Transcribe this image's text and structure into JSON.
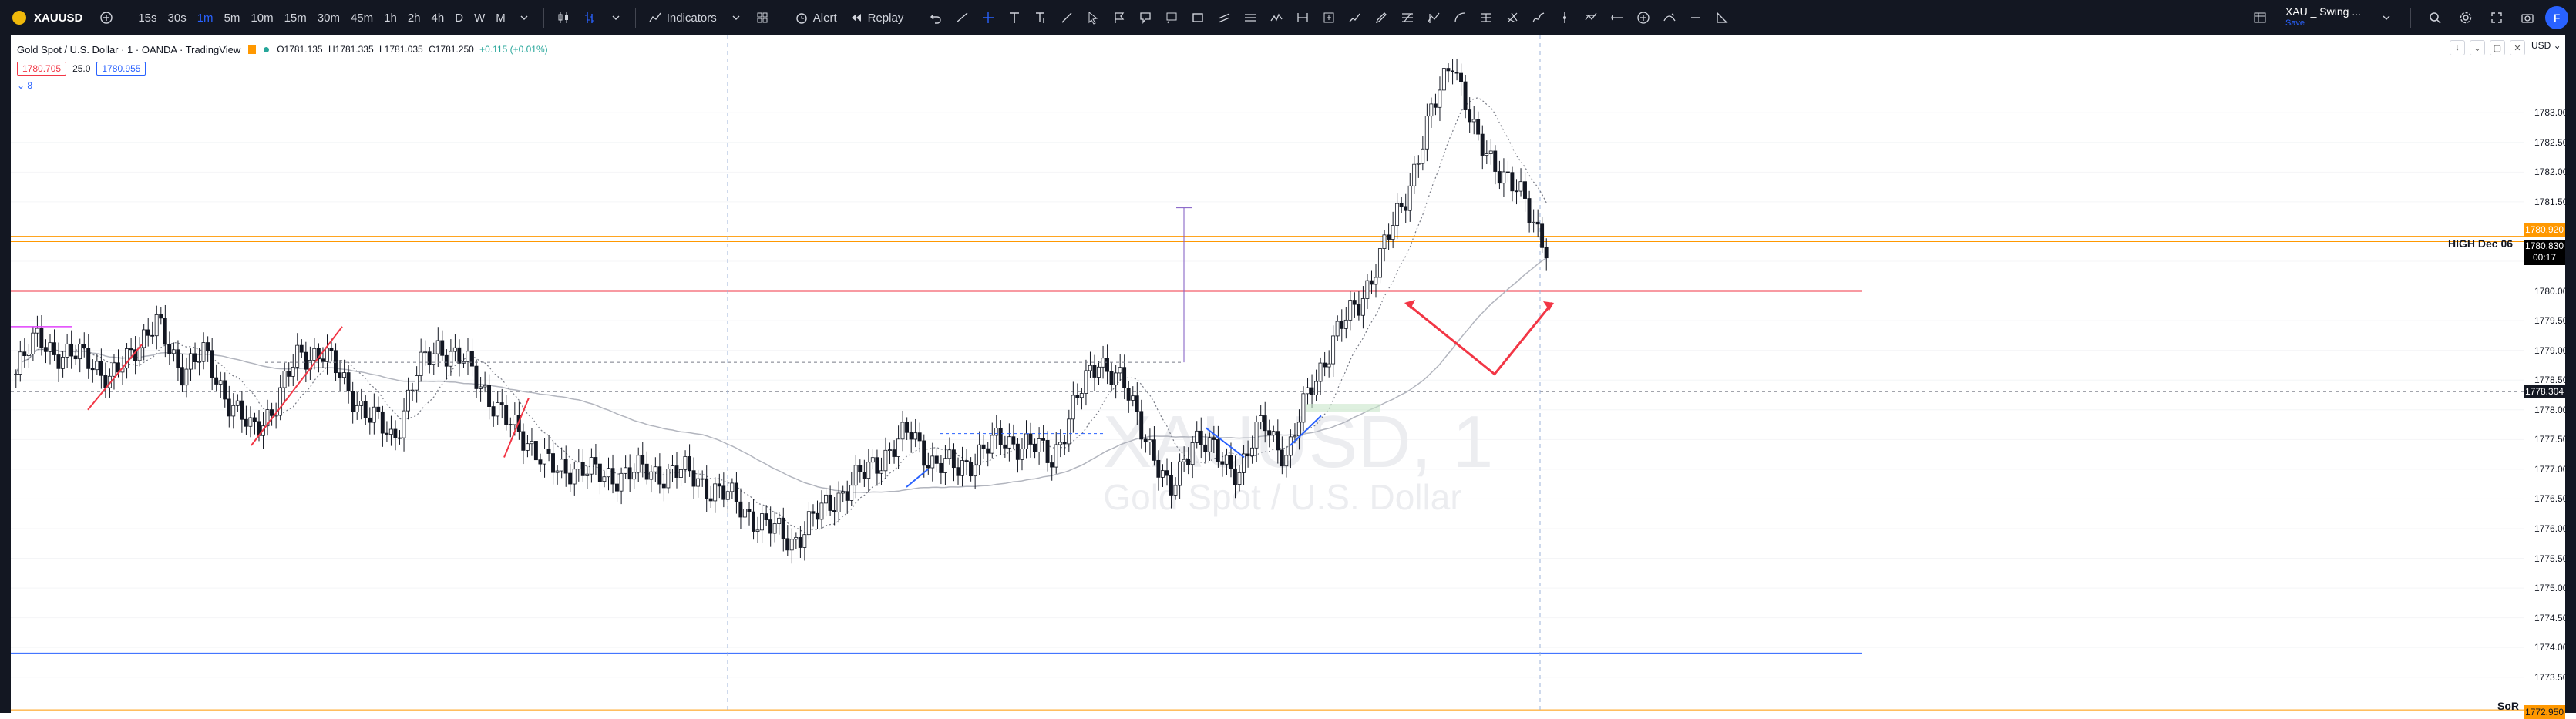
{
  "toolbar": {
    "symbol": "XAUUSD",
    "add_symbol": "+",
    "intervals": [
      "15s",
      "30s",
      "1m",
      "5m",
      "10m",
      "15m",
      "30m",
      "45m",
      "1h",
      "2h",
      "4h",
      "D",
      "W",
      "M"
    ],
    "active_interval": "1m",
    "indicators_label": "Indicators",
    "alert_label": "Alert",
    "replay_label": "Replay",
    "layout_name": "XAU _ Swing ...",
    "layout_sub": "Save",
    "avatar_letter": "F"
  },
  "legend": {
    "title": "Gold Spot / U.S. Dollar · 1 · OANDA · TradingView",
    "open": "O1781.135",
    "high": "H1781.335",
    "low": "L1781.035",
    "close": "C1781.250",
    "change": "+0.115 (+0.01%)",
    "sell_price": "1780.705",
    "spread": "25.0",
    "buy_price": "1780.955",
    "indicator_count": "8"
  },
  "watermark": {
    "symbol": "XAUUSD, 1",
    "name": "Gold Spot / U.S. Dollar"
  },
  "price_axis": {
    "currency": "USD",
    "labels": [
      "1783.000",
      "1782.500",
      "1782.000",
      "1781.500",
      "1780.500",
      "1780.000",
      "1779.500",
      "1779.000",
      "1778.500",
      "1778.000",
      "1777.500",
      "1777.000",
      "1776.500",
      "1776.000",
      "1775.500",
      "1775.000",
      "1774.500",
      "1774.000",
      "1773.500"
    ],
    "tag_orange": "1780.920",
    "tag_price": "1780.830",
    "tag_countdown": "00:17",
    "tag_crosshair": "1778.304",
    "tag_bottom": "1772.950",
    "high_label": "HIGH Dec 06",
    "sor_label": "SoR"
  },
  "colors": {
    "toolbar_bg": "#131722",
    "up": "#26a69a",
    "down": "#000000",
    "red_line": "#f23645",
    "blue_line": "#2962ff",
    "orange_line": "#ff9800",
    "accent": "#2962ff"
  },
  "chart_data": {
    "type": "candlestick",
    "price_range": [
      1772.9,
      1784.3
    ],
    "horizontal_levels": [
      {
        "price": 1780.92,
        "color": "#ff9800"
      },
      {
        "price": 1780.83,
        "color": "#ff9800"
      },
      {
        "price": 1780.0,
        "color": "#f23645"
      },
      {
        "price": 1773.9,
        "color": "#2962ff"
      },
      {
        "price": 1772.95,
        "color": "#ff9800"
      }
    ],
    "close_path": [
      1778.6,
      1779.3,
      1778.8,
      1779.0,
      1778.4,
      1779.1,
      1779.4,
      1778.7,
      1778.9,
      1778.2,
      1777.6,
      1778.1,
      1778.9,
      1779.0,
      1778.4,
      1777.9,
      1777.5,
      1778.6,
      1779.1,
      1778.8,
      1778.3,
      1777.7,
      1777.4,
      1776.9,
      1777.1,
      1776.8,
      1777.0,
      1776.9,
      1777.0,
      1776.8,
      1776.6,
      1776.3,
      1776.0,
      1775.8,
      1776.2,
      1776.6,
      1776.9,
      1777.3,
      1777.6,
      1777.1,
      1777.0,
      1777.3,
      1777.5,
      1777.4,
      1777.2,
      1778.1,
      1778.9,
      1778.4,
      1777.6,
      1776.5,
      1777.6,
      1777.2,
      1777.0,
      1777.8,
      1777.2,
      1778.4,
      1779.2,
      1779.8,
      1780.6,
      1781.6,
      1782.8,
      1784.0,
      1782.5,
      1782.1,
      1781.5,
      1780.8
    ]
  }
}
